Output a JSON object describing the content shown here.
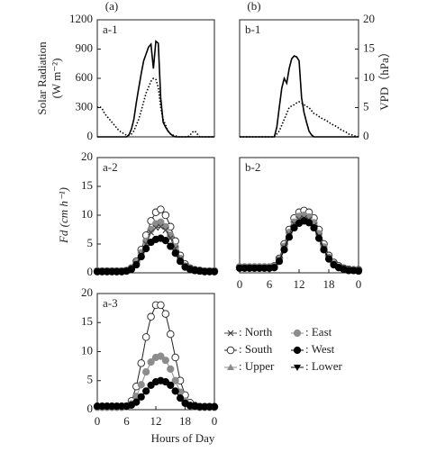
{
  "chart_data": [
    {
      "type": "line",
      "header": "(a)",
      "label": "a-1",
      "ylabel": [
        "Solar Radiation",
        "(W m⁻²)"
      ],
      "x": [
        0,
        0.5,
        1,
        1.5,
        2,
        2.5,
        3,
        3.5,
        4,
        4.5,
        5,
        5.5,
        6,
        6.5,
        7,
        7.5,
        8,
        8.5,
        9,
        9.5,
        10,
        10.5,
        11,
        11.5,
        12,
        12.5,
        13,
        13.5,
        14,
        14.5,
        15,
        15.5,
        16,
        16.5,
        17,
        17.5,
        18,
        18.5,
        19,
        19.5,
        20,
        20.5,
        21,
        21.5,
        22,
        22.5,
        23,
        23.5,
        24
      ],
      "xlim": [
        0,
        24
      ],
      "ylim": [
        0,
        1200
      ],
      "yticks": [
        0,
        300,
        600,
        900,
        1200
      ],
      "y2lim": [
        0,
        20
      ],
      "series": [
        {
          "color": "#000000",
          "dash": "solid",
          "axis": "y",
          "values": [
            0,
            0,
            0,
            0,
            0,
            0,
            0,
            0,
            0,
            0,
            0,
            0,
            0,
            20,
            80,
            180,
            350,
            500,
            650,
            780,
            850,
            920,
            950,
            700,
            980,
            960,
            400,
            150,
            100,
            60,
            30,
            10,
            0,
            0,
            0,
            0,
            0,
            0,
            0,
            0,
            0,
            0,
            0,
            0,
            0,
            0,
            0,
            0,
            0
          ]
        },
        {
          "color": "#000000",
          "dash": "dotted",
          "axis": "y2",
          "values": [
            5,
            5.2,
            4.8,
            4,
            3.5,
            3,
            2.5,
            2,
            1.5,
            1,
            0.8,
            0.5,
            0.3,
            0.3,
            0.5,
            1,
            2,
            3,
            4.5,
            6,
            7.5,
            8.5,
            9.5,
            10,
            9.8,
            8.5,
            5,
            3,
            2,
            1,
            0.5,
            0.3,
            0.2,
            0,
            0,
            0,
            0,
            0,
            0.3,
            0.8,
            1,
            0.5,
            0,
            0,
            0,
            0,
            0,
            0,
            0
          ]
        }
      ]
    },
    {
      "type": "line",
      "header": "(b)",
      "label": "b-1",
      "y2label": "VPD（hPa）",
      "x": [
        0,
        0.5,
        1,
        1.5,
        2,
        2.5,
        3,
        3.5,
        4,
        4.5,
        5,
        5.5,
        6,
        6.5,
        7,
        7.5,
        8,
        8.5,
        9,
        9.5,
        10,
        10.5,
        11,
        11.5,
        12,
        12.5,
        13,
        13.5,
        14,
        14.5,
        15,
        15.5,
        16,
        16.5,
        17,
        17.5,
        18,
        18.5,
        19,
        19.5,
        20,
        20.5,
        21,
        21.5,
        22,
        22.5,
        23,
        23.5,
        24
      ],
      "xlim": [
        0,
        24
      ],
      "ylim": [
        0,
        1200
      ],
      "y2lim": [
        0,
        20
      ],
      "y2ticks": [
        0,
        5,
        10,
        15,
        20
      ],
      "series": [
        {
          "color": "#000000",
          "dash": "solid",
          "axis": "y",
          "values": [
            0,
            0,
            0,
            0,
            0,
            0,
            0,
            0,
            0,
            0,
            0,
            0,
            0,
            0,
            0,
            100,
            300,
            500,
            600,
            550,
            700,
            800,
            830,
            820,
            780,
            400,
            250,
            150,
            60,
            20,
            0,
            0,
            0,
            0,
            0,
            0,
            0,
            0,
            0,
            0,
            0,
            0,
            0,
            0,
            0,
            0,
            0,
            0,
            0
          ]
        },
        {
          "color": "#000000",
          "dash": "dotted",
          "axis": "y2",
          "values": [
            0,
            0,
            0,
            0,
            0,
            0,
            0,
            0,
            0,
            0,
            0,
            0,
            0,
            0,
            0,
            0.5,
            1,
            2,
            3,
            4,
            5,
            5.3,
            5.5,
            5.8,
            6,
            5.8,
            5.5,
            5.2,
            5,
            4.5,
            4,
            3.8,
            3.5,
            3.2,
            3,
            2.8,
            2.5,
            2.2,
            2,
            1.8,
            1.5,
            1.2,
            1,
            0.8,
            0.5,
            0.4,
            0.2,
            0.1,
            0
          ]
        }
      ]
    },
    {
      "type": "line",
      "label": "a-2",
      "ylabel": "Fd (cm h⁻¹)",
      "x": [
        0,
        1,
        2,
        3,
        4,
        5,
        6,
        7,
        8,
        9,
        10,
        11,
        12,
        13,
        14,
        15,
        16,
        17,
        18,
        19,
        20,
        21,
        22,
        23,
        24
      ],
      "xlim": [
        0,
        24
      ],
      "ylim": [
        0,
        20
      ],
      "yticks": [
        0,
        5,
        10,
        15,
        20
      ],
      "series": [
        {
          "legend": 2,
          "values": [
            0.3,
            0.3,
            0.3,
            0.3,
            0.3,
            0.3,
            0.4,
            0.8,
            2,
            4,
            6.5,
            9,
            10.5,
            11,
            10,
            8,
            5.5,
            3,
            1.5,
            0.8,
            0.5,
            0.4,
            0.3,
            0.3,
            0.3
          ]
        },
        {
          "legend": 1,
          "values": [
            0.3,
            0.3,
            0.3,
            0.3,
            0.3,
            0.3,
            0.4,
            0.7,
            1.8,
            3.5,
            5.5,
            7.5,
            8.5,
            8.8,
            8,
            6.5,
            4.5,
            2.5,
            1.2,
            0.7,
            0.4,
            0.3,
            0.3,
            0.3,
            0.3
          ]
        },
        {
          "legend": 0,
          "values": [
            0.3,
            0.3,
            0.3,
            0.3,
            0.3,
            0.3,
            0.4,
            0.7,
            1.6,
            3.2,
            5,
            7,
            7.8,
            8,
            7.4,
            6,
            4.2,
            2.4,
            1.2,
            0.7,
            0.4,
            0.3,
            0.3,
            0.3,
            0.3
          ]
        },
        {
          "legend": 3,
          "values": [
            0.2,
            0.2,
            0.2,
            0.2,
            0.2,
            0.2,
            0.3,
            0.6,
            1.4,
            2.8,
            4.2,
            5.3,
            5.8,
            6,
            5.6,
            4.6,
            3.4,
            2,
            1,
            0.6,
            0.4,
            0.3,
            0.2,
            0.2,
            0.2
          ]
        }
      ]
    },
    {
      "type": "line",
      "label": "b-2",
      "x": [
        0,
        1,
        2,
        3,
        4,
        5,
        6,
        7,
        8,
        9,
        10,
        11,
        12,
        13,
        14,
        15,
        16,
        17,
        18,
        19,
        20,
        21,
        22,
        23,
        24
      ],
      "xlim": [
        0,
        24
      ],
      "ylim": [
        0,
        20
      ],
      "xticks": [
        0,
        6,
        12,
        18,
        {
          "value": 24,
          "label": "0"
        }
      ],
      "series": [
        {
          "legend": 2,
          "values": [
            1,
            1,
            1,
            1,
            1,
            1,
            1,
            1.2,
            2.5,
            5,
            7.5,
            9.5,
            10.5,
            10.8,
            10.5,
            9.5,
            7.5,
            5,
            3,
            1.8,
            1.2,
            0.8,
            0.6,
            0.5,
            0.5
          ]
        },
        {
          "legend": 1,
          "values": [
            1,
            1,
            1,
            1,
            1,
            1,
            1,
            1.1,
            2.3,
            4.6,
            7,
            8.8,
            9.8,
            10,
            9.7,
            8.7,
            6.8,
            4.5,
            2.7,
            1.6,
            1,
            0.7,
            0.5,
            0.5,
            0.4
          ]
        },
        {
          "legend": 0,
          "values": [
            0.9,
            0.9,
            0.9,
            0.9,
            0.9,
            0.9,
            0.9,
            1,
            2.2,
            4.4,
            6.7,
            8.5,
            9.3,
            9.5,
            9.2,
            8.2,
            6.3,
            4.2,
            2.5,
            1.5,
            1,
            0.7,
            0.5,
            0.4,
            0.4
          ]
        },
        {
          "legend": 3,
          "values": [
            0.8,
            0.8,
            0.8,
            0.8,
            0.8,
            0.8,
            0.8,
            0.9,
            2,
            4,
            6.2,
            7.8,
            8.6,
            9,
            8.7,
            7.8,
            6,
            4,
            2.4,
            1.4,
            0.9,
            0.6,
            0.4,
            0.4,
            0.3
          ]
        }
      ]
    },
    {
      "type": "line",
      "label": "a-3",
      "xlabel": "Hours of Day",
      "x": [
        0,
        1,
        2,
        3,
        4,
        5,
        6,
        7,
        8,
        9,
        10,
        11,
        12,
        13,
        14,
        15,
        16,
        17,
        18,
        19,
        20,
        21,
        22,
        23,
        24
      ],
      "xlim": [
        0,
        24
      ],
      "ylim": [
        0,
        20
      ],
      "yticks": [
        0,
        5,
        10,
        15,
        20
      ],
      "xticks": [
        0,
        6,
        12,
        18,
        {
          "value": 24,
          "label": "0"
        }
      ],
      "legend": [
        {
          "name": ": North",
          "marker": "x",
          "color": "#444444"
        },
        {
          "name": ": East",
          "marker": "circle",
          "color": "#8c8c8c"
        },
        {
          "name": ": South",
          "marker": "circle-open",
          "color": "#222222"
        },
        {
          "name": ": West",
          "marker": "circle",
          "color": "#000000"
        },
        {
          "name": ": Upper",
          "marker": "triangle",
          "color": "#8c8c8c"
        },
        {
          "name": ": Lower",
          "marker": "triangle-down",
          "color": "#000000"
        }
      ],
      "series": [
        {
          "legend": 2,
          "values": [
            0.5,
            0.5,
            0.5,
            0.5,
            0.5,
            0.5,
            0.6,
            1.5,
            4,
            8,
            12.5,
            16,
            18,
            18,
            16.5,
            13,
            9,
            5,
            2.5,
            1.2,
            0.7,
            0.5,
            0.5,
            0.5,
            0.5
          ]
        },
        {
          "legend": 1,
          "values": [
            0.4,
            0.4,
            0.4,
            0.4,
            0.4,
            0.4,
            0.5,
            1,
            2.3,
            4.3,
            6.5,
            8.2,
            9,
            9.2,
            8.5,
            7,
            5,
            3,
            1.5,
            0.8,
            0.5,
            0.4,
            0.4,
            0.4,
            0.4
          ]
        },
        {
          "legend": 3,
          "values": [
            0.6,
            0.6,
            0.6,
            0.6,
            0.6,
            0.6,
            0.6,
            0.8,
            1.3,
            2.2,
            3.2,
            4.2,
            4.8,
            5,
            4.8,
            4.2,
            3.2,
            2,
            1.1,
            0.7,
            0.6,
            0.5,
            0.5,
            0.5,
            0.5
          ]
        }
      ]
    }
  ]
}
